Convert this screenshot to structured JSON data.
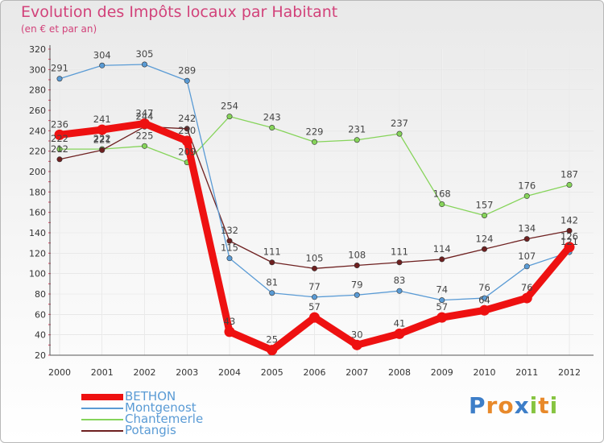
{
  "header": {
    "title": "Evolution des Impôts locaux par Habitant",
    "subtitle": "(en € et par an)"
  },
  "chart_data": {
    "type": "line",
    "title": "Evolution des Impôts locaux par Habitant",
    "subtitle": "(en € et par an)",
    "xlabel": "",
    "ylabel": "",
    "ylim": [
      20,
      320
    ],
    "yticks": [
      20,
      40,
      60,
      80,
      100,
      120,
      140,
      160,
      180,
      200,
      220,
      240,
      260,
      280,
      300,
      320
    ],
    "categories": [
      "2000",
      "2001",
      "2002",
      "2003",
      "2004",
      "2005",
      "2006",
      "2007",
      "2008",
      "2009",
      "2010",
      "2011",
      "2012"
    ],
    "grid": true,
    "legend_position": "bottom-left",
    "series": [
      {
        "name": "BETHON",
        "color": "#ee1111",
        "values": [
          236,
          241,
          247,
          230,
          43,
          25,
          57,
          30,
          41,
          57,
          64,
          76,
          126
        ]
      },
      {
        "name": "Montgenost",
        "color": "#5a9bd5",
        "values": [
          291,
          304,
          305,
          289,
          115,
          81,
          77,
          79,
          83,
          74,
          76,
          107,
          121
        ]
      },
      {
        "name": "Chantemerle",
        "color": "#86d45a",
        "values": [
          222,
          222,
          225,
          209,
          254,
          243,
          229,
          231,
          237,
          168,
          157,
          176,
          187
        ]
      },
      {
        "name": "Potangis",
        "color": "#6e2020",
        "values": [
          212,
          221,
          244,
          242,
          132,
          111,
          105,
          108,
          111,
          114,
          124,
          134,
          142
        ]
      }
    ]
  },
  "legend": {
    "items": [
      "BETHON",
      "Montgenost",
      "Chantemerle",
      "Potangis"
    ]
  },
  "logo": {
    "letters": [
      "P",
      "r",
      "o",
      "x",
      "i",
      "t",
      "i"
    ],
    "colors": [
      "#3d7ec8",
      "#e8892a",
      "#e8892a",
      "#3d7ec8",
      "#86c440",
      "#e8892a",
      "#86c440"
    ]
  }
}
